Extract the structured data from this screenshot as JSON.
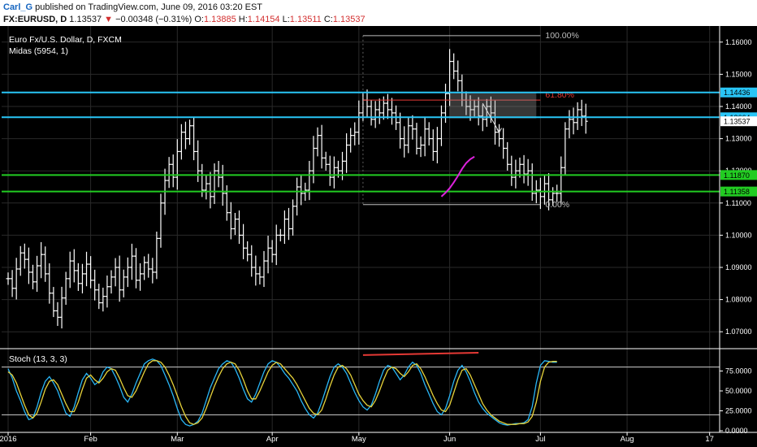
{
  "header": {
    "author": "Carl_G",
    "published_text": "published on TradingView.com, June 09, 2016 03:20 EST",
    "symbol": "FX:EURUSD, D",
    "last": "1.13537",
    "change_arrow": "▼",
    "change": "−0.00348 (−0.31%)",
    "open_label": "O:",
    "open": "1.13885",
    "high_label": "H:",
    "high": "1.14154",
    "low_label": "L:",
    "low": "1.13511",
    "close_label": "C:",
    "close": "1.13537"
  },
  "colors": {
    "background": "#000000",
    "bars": "#ffffff",
    "cyan_level": "#29c5f6",
    "green_level": "#22cc22",
    "red_level": "#e53935",
    "midas": "#dd22dd",
    "stoch_k": "#29b6f6",
    "stoch_d": "#e6d23a",
    "grid": "#2a2a2a"
  },
  "chart_data": [
    {
      "type": "ohlc",
      "title": "Euro Fx/U.S. Dollar, D, FXCM",
      "indicator_label": "Midas (5954, 1)",
      "ylim": [
        1.065,
        1.165
      ],
      "y_ticks": [
        1.07,
        1.08,
        1.09,
        1.1,
        1.11,
        1.12,
        1.13,
        1.14,
        1.15,
        1.16
      ],
      "y_tick_labels": [
        "1.07000",
        "1.08000",
        "1.09000",
        "1.10000",
        "1.11000",
        "1.12000",
        "1.13000",
        "1.14000",
        "1.15000",
        "1.16000"
      ],
      "x_ticks": [
        {
          "label": "2016",
          "date": "2016-01-04"
        },
        {
          "label": "Feb",
          "date": "2016-02-01"
        },
        {
          "label": "Mar",
          "date": "2016-03-01"
        },
        {
          "label": "Apr",
          "date": "2016-04-01"
        },
        {
          "label": "May",
          "date": "2016-05-02"
        },
        {
          "label": "Jun",
          "date": "2016-06-01"
        },
        {
          "label": "Jul",
          "date": "2016-07-01"
        },
        {
          "label": "Aug",
          "date": "2016-08-01"
        },
        {
          "label": "17",
          "date": "2016-08-29"
        }
      ],
      "last_date": "2016-06-09",
      "closes": [
        1.0865,
        1.0835,
        1.0895,
        1.0945,
        1.0925,
        1.0885,
        1.0855,
        1.0905,
        1.094,
        1.088,
        1.082,
        1.0765,
        1.0745,
        1.0805,
        1.0865,
        1.092,
        1.089,
        1.085,
        1.088,
        1.091,
        1.086,
        1.083,
        1.079,
        1.081,
        1.084,
        1.087,
        1.09,
        1.083,
        1.087,
        1.09,
        1.0935,
        1.086,
        1.088,
        1.0915,
        1.0895,
        1.0885,
        1.099,
        1.11,
        1.117,
        1.122,
        1.118,
        1.126,
        1.132,
        1.13,
        1.134,
        1.126,
        1.12,
        1.114,
        1.116,
        1.112,
        1.12,
        1.118,
        1.113,
        1.107,
        1.102,
        1.105,
        1.1,
        1.096,
        1.094,
        1.09,
        1.088,
        1.087,
        1.092,
        1.096,
        1.094,
        1.1,
        1.1,
        1.105,
        1.102,
        1.109,
        1.115,
        1.113,
        1.114,
        1.12,
        1.127,
        1.131,
        1.124,
        1.122,
        1.118,
        1.121,
        1.12,
        1.123,
        1.128,
        1.131,
        1.132,
        1.138,
        1.142,
        1.14,
        1.136,
        1.139,
        1.138,
        1.141,
        1.139,
        1.138,
        1.135,
        1.13,
        1.128,
        1.134,
        1.133,
        1.127,
        1.128,
        1.133,
        1.13,
        1.126,
        1.13,
        1.138,
        1.144,
        1.154,
        1.151,
        1.148,
        1.142,
        1.14,
        1.139,
        1.14,
        1.137,
        1.136,
        1.14,
        1.138,
        1.132,
        1.13,
        1.127,
        1.122,
        1.118,
        1.12,
        1.122,
        1.119,
        1.12,
        1.113,
        1.114,
        1.112,
        1.116,
        1.111,
        1.113,
        1.113,
        1.121,
        1.133,
        1.136,
        1.135,
        1.139,
        1.137,
        1.1354
      ],
      "levels": [
        {
          "name": "cyan-upper",
          "value": 1.14436,
          "label": "1.14436",
          "color": "#29c5f6"
        },
        {
          "name": "cyan-lower",
          "value": 1.13664,
          "label": "1.13664",
          "color": "#29c5f6"
        },
        {
          "name": "green-upper",
          "value": 1.1187,
          "label": "1.11870",
          "color": "#22cc22"
        },
        {
          "name": "green-lower",
          "value": 1.11358,
          "label": "1.11358",
          "color": "#22cc22"
        }
      ],
      "last_price_label": "1.13537",
      "fib": {
        "high": 1.162,
        "low": 1.1095,
        "high_label": "100.00%",
        "low_label": "0.00%",
        "ratio_label": "61.80%",
        "ratio_value": 1.142,
        "start_date": "2016-05-03",
        "end_date": "2016-07-01"
      },
      "zone": {
        "start_date": "2016-06-01",
        "end_date": "2016-06-30",
        "y0": 1.1363,
        "y1": 1.1442
      },
      "midas": {
        "dates": [
          "2016-05-30",
          "2016-05-31",
          "2016-06-01",
          "2016-06-02",
          "2016-06-03",
          "2016-06-06",
          "2016-06-07",
          "2016-06-08",
          "2016-06-09"
        ],
        "values": [
          1.112,
          1.1132,
          1.1146,
          1.1164,
          1.1184,
          1.1206,
          1.1224,
          1.1236,
          1.1244
        ]
      },
      "arrow": {
        "from": {
          "date": "2016-06-13",
          "value": 1.141
        },
        "to": {
          "date": "2016-06-17",
          "value": 1.132
        }
      }
    },
    {
      "type": "line",
      "title": "Stoch (13, 3, 3)",
      "ylim": [
        0,
        100
      ],
      "y_ticks": [
        0,
        25,
        50,
        75
      ],
      "y_tick_labels": [
        "0.0000",
        "25.0000",
        "50.0000",
        "75.0000"
      ],
      "bands": [
        20,
        80
      ],
      "series": [
        {
          "name": "%K",
          "color": "#29b6f6",
          "values": [
            78,
            66,
            50,
            38,
            24,
            14,
            16,
            30,
            48,
            62,
            68,
            60,
            50,
            36,
            22,
            18,
            30,
            48,
            64,
            72,
            66,
            58,
            62,
            74,
            80,
            78,
            68,
            56,
            42,
            36,
            46,
            60,
            72,
            84,
            88,
            90,
            88,
            82,
            70,
            58,
            44,
            28,
            14,
            8,
            6,
            8,
            12,
            22,
            38,
            54,
            66,
            78,
            84,
            88,
            86,
            78,
            66,
            52,
            40,
            36,
            46,
            60,
            74,
            84,
            88,
            86,
            80,
            72,
            66,
            58,
            50,
            38,
            28,
            20,
            16,
            22,
            36,
            52,
            68,
            80,
            84,
            80,
            72,
            60,
            48,
            38,
            30,
            26,
            32,
            46,
            62,
            76,
            82,
            80,
            72,
            64,
            70,
            80,
            86,
            82,
            72,
            58,
            46,
            34,
            24,
            20,
            28,
            44,
            62,
            76,
            82,
            74,
            62,
            48,
            36,
            28,
            22,
            18,
            14,
            10,
            8,
            7,
            8,
            9,
            9,
            10,
            14,
            30,
            60,
            82,
            88,
            87,
            86,
            86
          ]
        },
        {
          "name": "%D",
          "color": "#e6d23a",
          "values": [
            74,
            70,
            60,
            46,
            32,
            20,
            16,
            22,
            36,
            52,
            62,
            64,
            58,
            46,
            34,
            24,
            24,
            36,
            52,
            66,
            70,
            64,
            60,
            66,
            74,
            78,
            76,
            66,
            54,
            44,
            42,
            50,
            62,
            74,
            84,
            88,
            88,
            86,
            80,
            70,
            58,
            44,
            30,
            18,
            10,
            8,
            10,
            16,
            28,
            42,
            56,
            68,
            78,
            84,
            86,
            84,
            76,
            64,
            50,
            40,
            40,
            50,
            62,
            74,
            82,
            86,
            84,
            78,
            72,
            66,
            58,
            48,
            38,
            28,
            22,
            20,
            26,
            40,
            56,
            70,
            80,
            82,
            78,
            70,
            58,
            46,
            38,
            32,
            30,
            38,
            50,
            64,
            76,
            80,
            78,
            72,
            68,
            74,
            82,
            84,
            78,
            68,
            56,
            44,
            34,
            26,
            24,
            32,
            48,
            64,
            76,
            78,
            70,
            58,
            46,
            34,
            26,
            20,
            16,
            12,
            10,
            8,
            8,
            8,
            9,
            9,
            11,
            18,
            36,
            62,
            80,
            86,
            87,
            87
          ]
        }
      ],
      "divergence_price_from_date": "2016-05-03",
      "divergence_price_to_date": "2016-06-10",
      "divergence_value_from": 95,
      "divergence_value_to": 98
    }
  ]
}
